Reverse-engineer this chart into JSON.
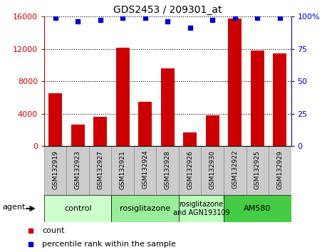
{
  "title": "GDS2453 / 209301_at",
  "samples": [
    "GSM132919",
    "GSM132923",
    "GSM132927",
    "GSM132921",
    "GSM132924",
    "GSM132928",
    "GSM132926",
    "GSM132930",
    "GSM132922",
    "GSM132925",
    "GSM132929"
  ],
  "counts": [
    6500,
    2700,
    3600,
    12100,
    5500,
    9600,
    1700,
    3800,
    15700,
    11800,
    11400
  ],
  "percentiles": [
    99,
    96,
    97,
    99,
    99,
    96,
    91,
    97,
    99,
    99,
    99
  ],
  "bar_color": "#cc0000",
  "dot_color": "#0000cc",
  "ylim_left": [
    0,
    16000
  ],
  "ylim_right": [
    0,
    100
  ],
  "yticks_left": [
    0,
    4000,
    8000,
    12000,
    16000
  ],
  "yticks_right": [
    0,
    25,
    50,
    75,
    100
  ],
  "groups": [
    {
      "label": "control",
      "start": 0,
      "end": 3,
      "color": "#ccffcc"
    },
    {
      "label": "rosiglitazone",
      "start": 3,
      "end": 6,
      "color": "#99ee99"
    },
    {
      "label": "rosiglitazone\nand AGN193109",
      "start": 6,
      "end": 8,
      "color": "#bbffbb"
    },
    {
      "label": "AM580",
      "start": 8,
      "end": 11,
      "color": "#44cc44"
    }
  ],
  "legend_count_color": "#cc0000",
  "legend_dot_color": "#0000cc",
  "agent_label": "agent",
  "tick_area_color": "#cccccc",
  "cell_edge_color": "#888888",
  "right_tick_labels": [
    "0",
    "25",
    "50",
    "75",
    "100%"
  ]
}
